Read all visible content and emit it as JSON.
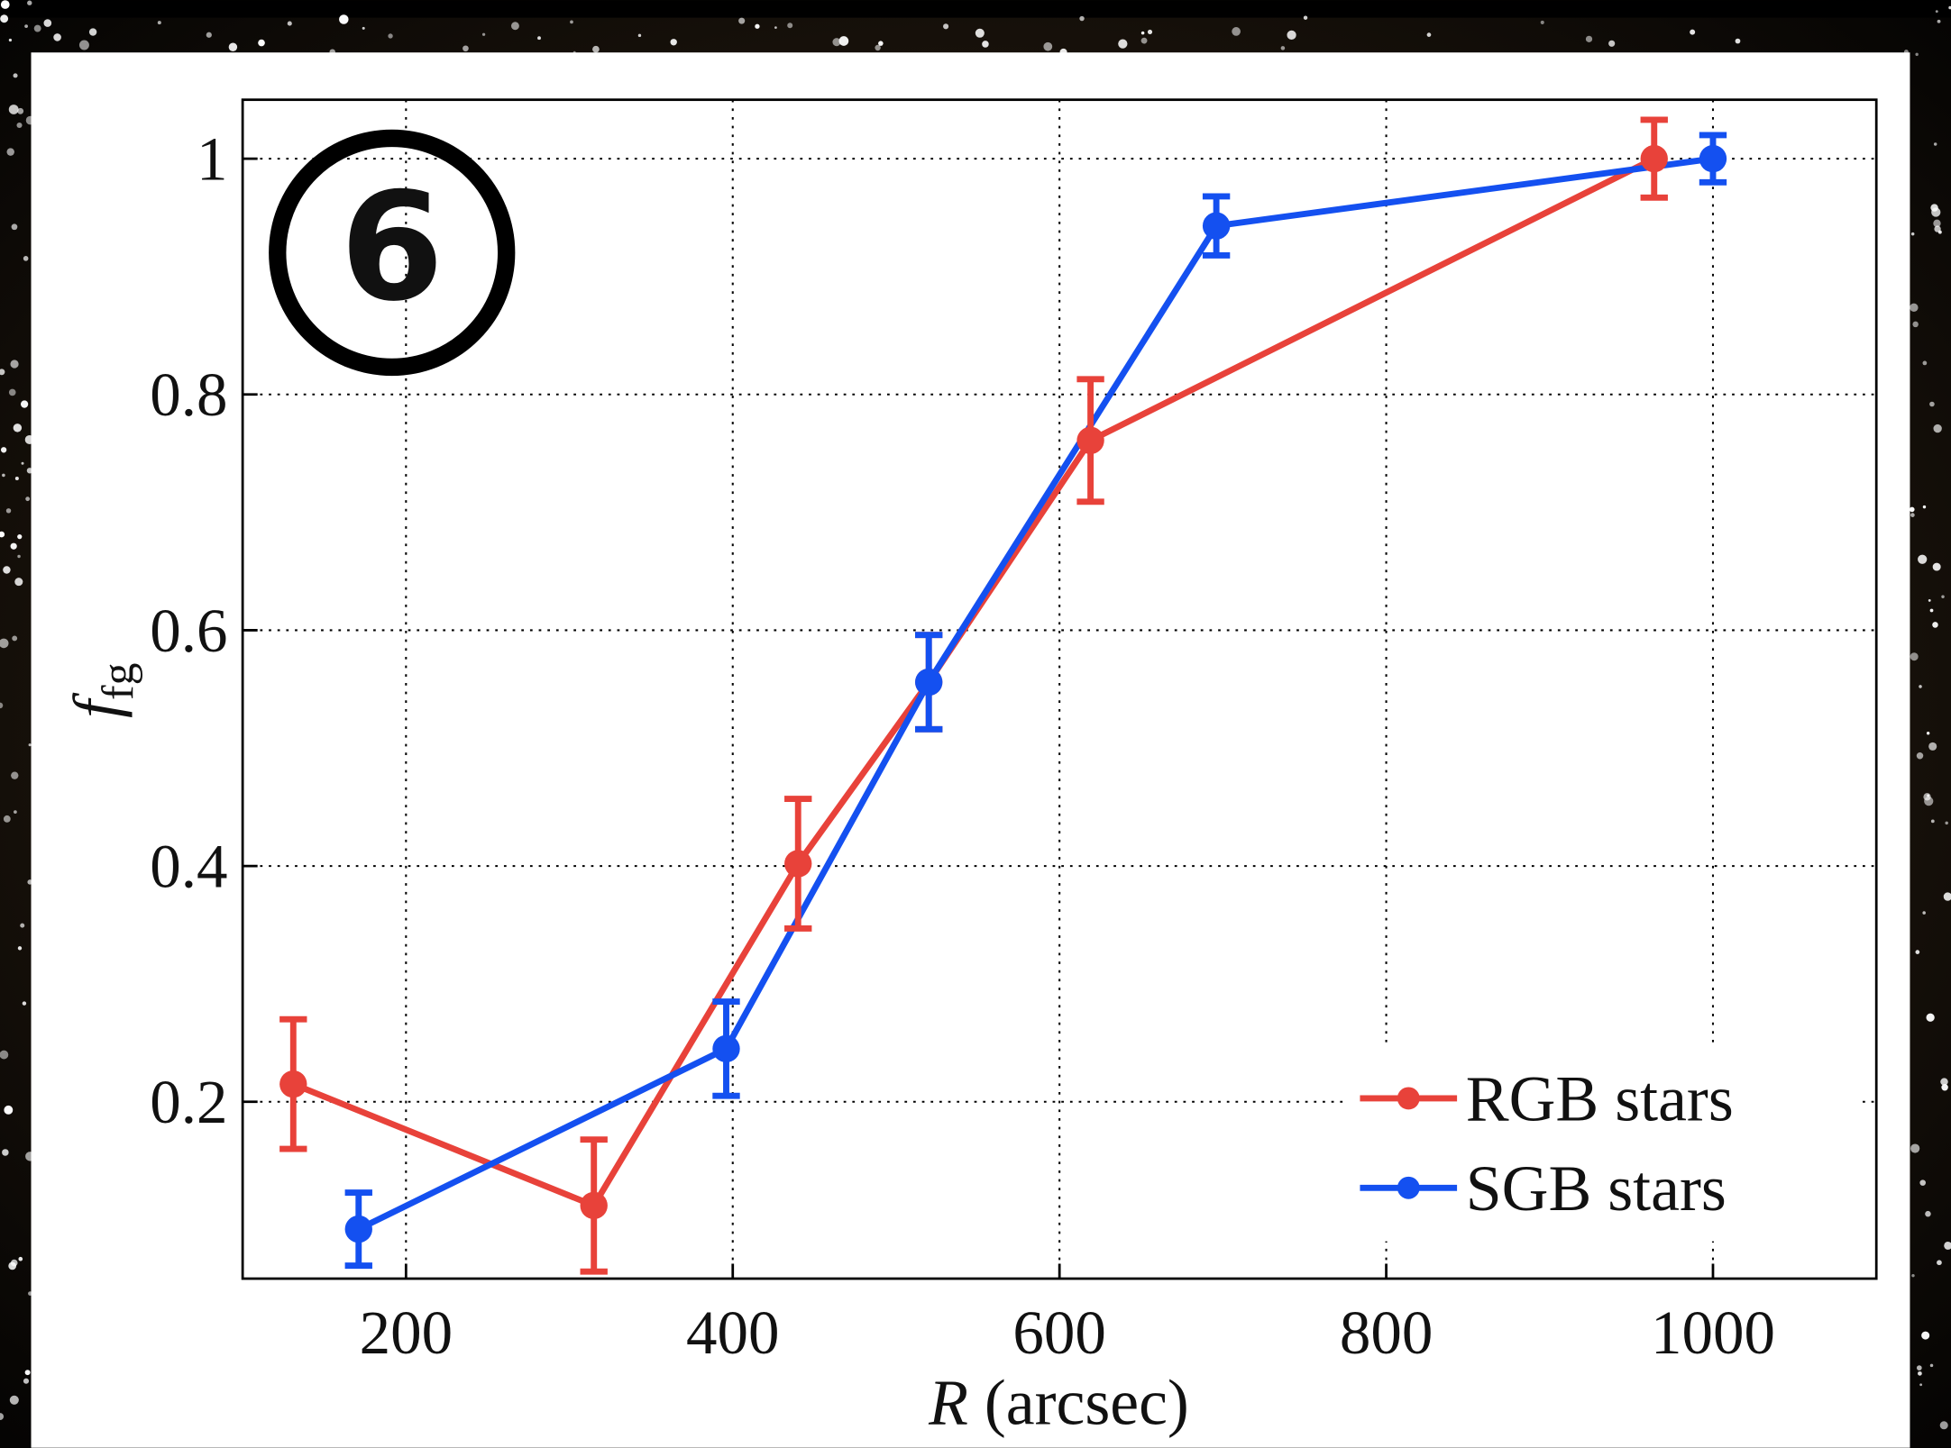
{
  "chart_data": {
    "type": "line",
    "annotation": "6",
    "xlabel_symbol": "R",
    "xlabel_unit": "(arcsec)",
    "ylabel_symbol": "f",
    "ylabel_subscript": "fg",
    "xlim": [
      100,
      1100
    ],
    "xticks": [
      200,
      400,
      600,
      800,
      1000
    ],
    "ylim": [
      0.05,
      1.05
    ],
    "yticks": [
      0.2,
      0.4,
      0.6,
      0.8,
      1
    ],
    "grid": true,
    "legend": "lower right",
    "series": [
      {
        "name": "RGB stars",
        "color": "#e8423a",
        "x": [
          131,
          315,
          440,
          520,
          619,
          964
        ],
        "values": [
          0.215,
          0.112,
          0.402,
          0.556,
          0.761,
          1.0
        ],
        "errors": [
          0.055,
          0.056,
          0.055,
          0.04,
          0.052,
          0.033
        ]
      },
      {
        "name": "SGB stars",
        "color": "#1450f0",
        "x": [
          171,
          396,
          520,
          696,
          1000
        ],
        "values": [
          0.092,
          0.245,
          0.556,
          0.943,
          1.0
        ],
        "errors": [
          0.031,
          0.04,
          0.04,
          0.025,
          0.02
        ]
      }
    ]
  }
}
